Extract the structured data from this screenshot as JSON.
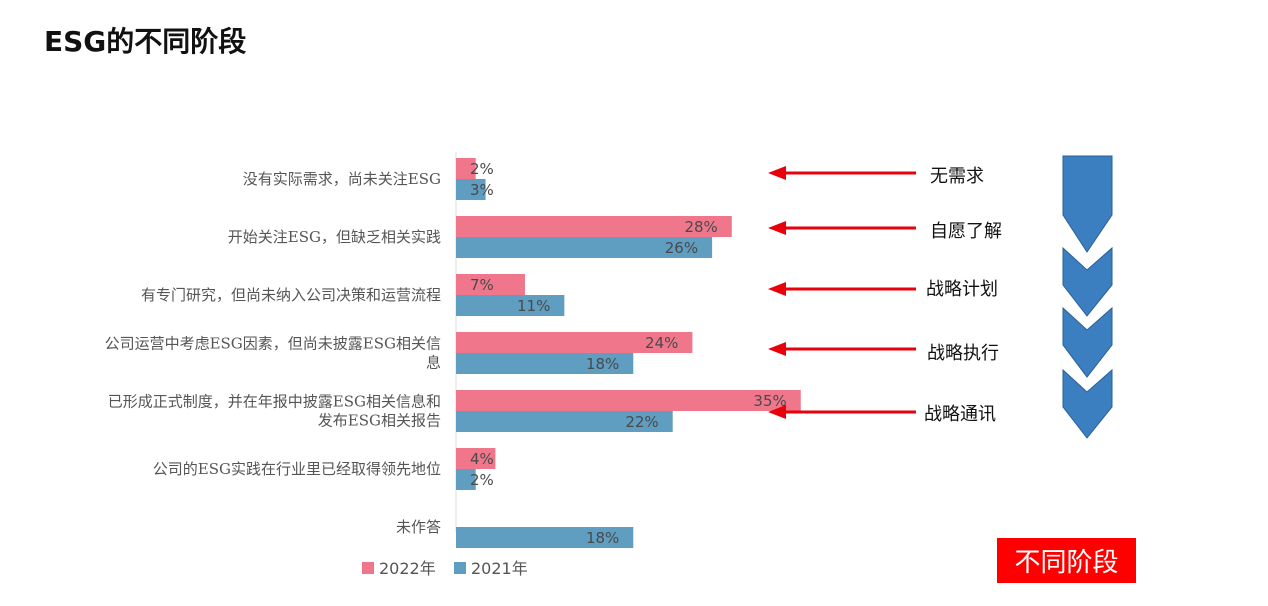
{
  "title": "ESG的不同阶段",
  "badge": {
    "text": "不同阶段",
    "color": "#ff0000"
  },
  "stage_labels": [
    "无需求",
    "自愿了解",
    "战略计划",
    "战略执行",
    "战略通讯"
  ],
  "colors": {
    "arrow": "#e8000b",
    "chevron": "#3c7fc0",
    "chevron_edge": "#2a5f95"
  },
  "chart_data": {
    "type": "bar",
    "orientation": "horizontal",
    "categories": [
      [
        "没有实际需求，尚未关注ESG"
      ],
      [
        "开始关注ESG，但缺乏相关实践"
      ],
      [
        "有专门研究，但尚未纳入公司决策和运营流程"
      ],
      [
        "公司运营中考虑ESG因素，但尚未披露ESG相关信",
        "息"
      ],
      [
        "已形成正式制度，并在年报中披露ESG相关信息和",
        "发布ESG相关报告"
      ],
      [
        "公司的ESG实践在行业里已经取得领先地位"
      ],
      [
        "未作答"
      ]
    ],
    "series": [
      {
        "name": "2022年",
        "color": "#f0768b",
        "values": [
          2,
          28,
          7,
          24,
          35,
          4,
          null
        ],
        "labels": [
          "2%",
          "28%",
          "7%",
          "24%",
          "35%",
          "4%",
          ""
        ]
      },
      {
        "name": "2021年",
        "color": "#5f9dc1",
        "values": [
          3,
          26,
          11,
          18,
          22,
          2,
          18
        ],
        "labels": [
          "3%",
          "26%",
          "11%",
          "18%",
          "22%",
          "2%",
          "18%"
        ]
      }
    ],
    "xlim": [
      0,
      40
    ],
    "grid": false,
    "legend": "bottom"
  }
}
